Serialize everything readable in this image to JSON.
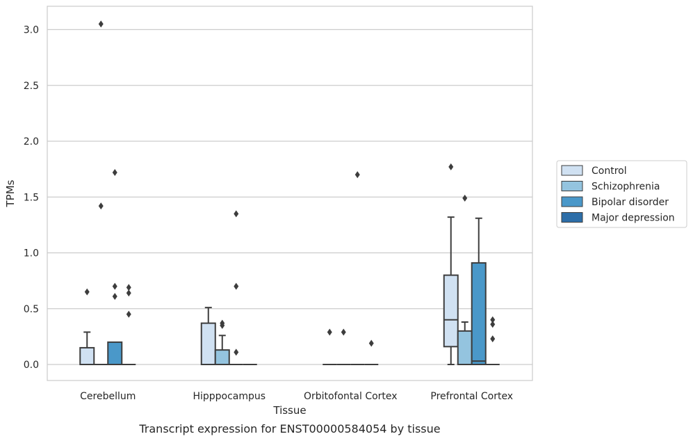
{
  "caption": "Transcript expression for ENST00000584054 by tissue",
  "chart_data": {
    "type": "box",
    "xlabel": "Tissue",
    "ylabel": "TPMs",
    "ylim": [
      -0.15,
      3.22
    ],
    "yticks": [
      0.0,
      0.5,
      1.0,
      1.5,
      2.0,
      2.5,
      3.0
    ],
    "ytick_labels": [
      "0.0",
      "0.5",
      "1.0",
      "1.5",
      "2.0",
      "2.5",
      "3.0"
    ],
    "grid": "horizontal",
    "legend_position": "right",
    "categories": [
      "Cerebellum",
      "Hipppocampus",
      "Orbitofontal Cortex",
      "Prefrontal Cortex"
    ],
    "series": [
      {
        "name": "Control",
        "color": "#d0e1f2",
        "boxes": [
          {
            "q1": 0.0,
            "median": 0.0,
            "q3": 0.15,
            "whislo": 0.0,
            "whishi": 0.29,
            "fliers": [
              0.65
            ]
          },
          {
            "q1": 0.0,
            "median": 0.0,
            "q3": 0.37,
            "whislo": 0.0,
            "whishi": 0.51,
            "fliers": []
          },
          {
            "q1": 0.0,
            "median": 0.0,
            "q3": 0.0,
            "whislo": 0.0,
            "whishi": 0.0,
            "fliers": [
              0.29
            ]
          },
          {
            "q1": 0.16,
            "median": 0.4,
            "q3": 0.8,
            "whislo": 0.0,
            "whishi": 1.32,
            "fliers": [
              1.77
            ]
          }
        ]
      },
      {
        "name": "Schizophrenia",
        "color": "#94c4df",
        "boxes": [
          {
            "q1": 0.0,
            "median": 0.0,
            "q3": 0.0,
            "whislo": 0.0,
            "whishi": 0.0,
            "fliers": [
              3.05,
              1.42
            ]
          },
          {
            "q1": 0.0,
            "median": 0.0,
            "q3": 0.13,
            "whislo": 0.0,
            "whishi": 0.26,
            "fliers": [
              0.37,
              0.35
            ]
          },
          {
            "q1": 0.0,
            "median": 0.0,
            "q3": 0.0,
            "whislo": 0.0,
            "whishi": 0.0,
            "fliers": [
              0.29
            ]
          },
          {
            "q1": 0.0,
            "median": 0.0,
            "q3": 0.3,
            "whislo": 0.0,
            "whishi": 0.38,
            "fliers": [
              1.49
            ]
          }
        ]
      },
      {
        "name": "Bipolar disorder",
        "color": "#4a98c9",
        "boxes": [
          {
            "q1": 0.0,
            "median": 0.0,
            "q3": 0.2,
            "whislo": 0.0,
            "whishi": 0.2,
            "fliers": [
              1.72,
              0.7,
              0.61
            ]
          },
          {
            "q1": 0.0,
            "median": 0.0,
            "q3": 0.0,
            "whislo": 0.0,
            "whishi": 0.0,
            "fliers": [
              1.35,
              0.7,
              0.11
            ]
          },
          {
            "q1": 0.0,
            "median": 0.0,
            "q3": 0.0,
            "whislo": 0.0,
            "whishi": 0.0,
            "fliers": [
              1.7
            ]
          },
          {
            "q1": 0.0,
            "median": 0.03,
            "q3": 0.91,
            "whislo": 0.0,
            "whishi": 1.31,
            "fliers": []
          }
        ]
      },
      {
        "name": "Major depression",
        "color": "#2d6ea8",
        "boxes": [
          {
            "q1": 0.0,
            "median": 0.0,
            "q3": 0.0,
            "whislo": 0.0,
            "whishi": 0.0,
            "fliers": [
              0.69,
              0.64,
              0.45
            ]
          },
          {
            "q1": 0.0,
            "median": 0.0,
            "q3": 0.0,
            "whislo": 0.0,
            "whishi": 0.0,
            "fliers": []
          },
          {
            "q1": 0.0,
            "median": 0.0,
            "q3": 0.0,
            "whislo": 0.0,
            "whishi": 0.0,
            "fliers": [
              0.19
            ]
          },
          {
            "q1": 0.0,
            "median": 0.0,
            "q3": 0.0,
            "whislo": 0.0,
            "whishi": 0.0,
            "fliers": [
              0.4,
              0.36,
              0.23
            ]
          }
        ]
      }
    ]
  }
}
